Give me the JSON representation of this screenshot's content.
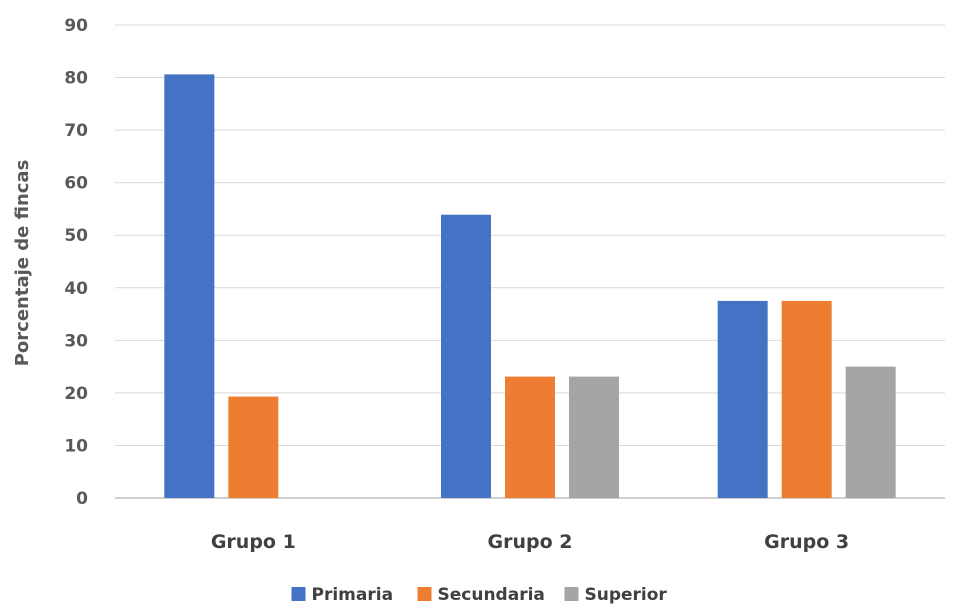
{
  "chart_data": {
    "type": "bar",
    "categories": [
      "Grupo 1",
      "Grupo 2",
      "Grupo 3"
    ],
    "series": [
      {
        "name": "Primaria",
        "values": [
          80.6,
          53.9,
          37.5
        ],
        "color": "#4472C4"
      },
      {
        "name": "Secundaria",
        "values": [
          19.3,
          23.1,
          37.5
        ],
        "color": "#ED7D31"
      },
      {
        "name": "Superior",
        "values": [
          0,
          23.1,
          25.0
        ],
        "color": "#A5A5A5"
      }
    ],
    "title": "",
    "xlabel": "",
    "ylabel": "Porcentaje de fincas",
    "ylim": [
      0,
      90
    ],
    "yticks": [
      0,
      10,
      20,
      30,
      40,
      50,
      60,
      70,
      80,
      90
    ],
    "grid": true,
    "legend_position": "bottom"
  }
}
